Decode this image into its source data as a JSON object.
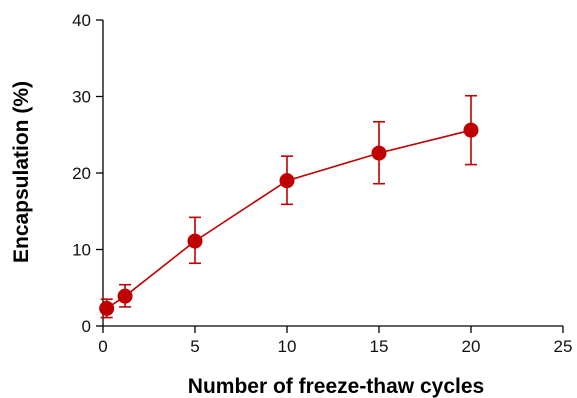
{
  "chart_data": {
    "type": "line",
    "title": "",
    "xlabel": "Number of freeze-thaw cycles",
    "ylabel": "Encapsulation (%)",
    "xlim": [
      0,
      25
    ],
    "ylim": [
      0,
      40
    ],
    "xticks": [
      "0",
      "5",
      "10",
      "15",
      "20",
      "25"
    ],
    "yticks": [
      "0",
      "10",
      "20",
      "30",
      "40"
    ],
    "grid": false,
    "legend": "none",
    "series": [
      {
        "color": "#c00000",
        "marker": "circle",
        "points": [
          {
            "x": 0.2,
            "y": 2.3,
            "err_low": 1.2,
            "err_high": 1.2
          },
          {
            "x": 1.2,
            "y": 3.9,
            "err_low": 1.4,
            "err_high": 1.5
          },
          {
            "x": 5,
            "y": 11.1,
            "err_low": 2.9,
            "err_high": 3.1
          },
          {
            "x": 10,
            "y": 19.0,
            "err_low": 3.1,
            "err_high": 3.2
          },
          {
            "x": 15,
            "y": 22.6,
            "err_low": 4.0,
            "err_high": 4.1
          },
          {
            "x": 20,
            "y": 25.6,
            "err_low": 4.5,
            "err_high": 4.5
          }
        ]
      }
    ]
  }
}
